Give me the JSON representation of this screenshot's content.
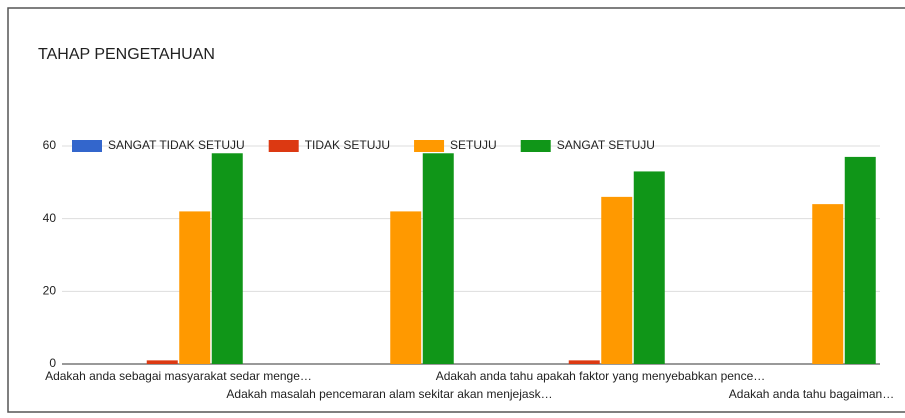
{
  "chart_data": {
    "type": "bar",
    "title": "TAHAP PENGETAHUAN",
    "categories": [
      "Adakah anda sebagai masyarakat sedar menge…",
      "Adakah masalah pencemaran alam sekitar akan menjejask…",
      "Adakah anda tahu apakah faktor yang menyebabkan pence…",
      "Adakah anda tahu bagaiman…"
    ],
    "series": [
      {
        "name": "SANGAT TIDAK SETUJU",
        "color": "#3366cc",
        "values": [
          0,
          0,
          0,
          0
        ]
      },
      {
        "name": "TIDAK SETUJU",
        "color": "#dc3912",
        "values": [
          1,
          0,
          1,
          0
        ]
      },
      {
        "name": "SETUJU",
        "color": "#ff9900",
        "values": [
          42,
          42,
          46,
          44
        ]
      },
      {
        "name": "SANGAT SETUJU",
        "color": "#109618",
        "values": [
          58,
          58,
          53,
          57
        ]
      }
    ],
    "ylim": [
      0,
      60
    ],
    "yticks": [
      0,
      20,
      40,
      60
    ],
    "grid": true,
    "legend": "top"
  }
}
